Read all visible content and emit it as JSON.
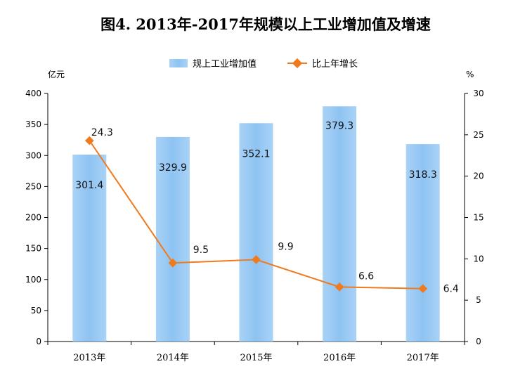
{
  "chart_data": {
    "type": "bar",
    "title": "图4. 2013年-2017年规模以上工业增加值及增速",
    "categories": [
      "2013年",
      "2014年",
      "2015年",
      "2016年",
      "2017年"
    ],
    "y_left": {
      "unit": "亿元",
      "min": 0,
      "max": 400,
      "ticks": [
        0,
        50,
        100,
        150,
        200,
        250,
        300,
        350,
        400
      ]
    },
    "y_right": {
      "unit": "%",
      "min": 0,
      "max": 30,
      "ticks": [
        0,
        5,
        10,
        15,
        20,
        25,
        30
      ]
    },
    "legend_position": "top-center",
    "grid": false,
    "series": [
      {
        "name": "规上工业增加值",
        "type": "bar",
        "axis": "left",
        "color": "#8ec3f2",
        "values": [
          301.4,
          329.9,
          352.1,
          379.3,
          318.3
        ],
        "labels": [
          "301.4",
          "329.9",
          "352.1",
          "379.3",
          "318.3"
        ]
      },
      {
        "name": "比上年增长",
        "type": "line",
        "axis": "right",
        "color": "#f07a1e",
        "values": [
          24.3,
          9.5,
          9.9,
          6.6,
          6.4
        ],
        "labels": [
          "24.3",
          "9.5",
          "9.9",
          "6.6",
          "6.4"
        ]
      }
    ]
  }
}
